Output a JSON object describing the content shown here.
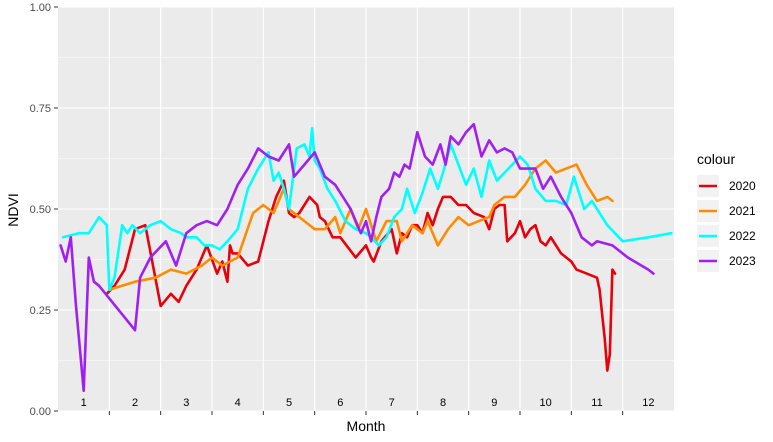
{
  "chart_data": {
    "type": "line",
    "xlabel": "Month",
    "ylabel": "NDVI",
    "legend_title": "colour",
    "legend_position": "right",
    "grid": true,
    "ylim": [
      0,
      1
    ],
    "xlim": [
      0.5,
      12.5
    ],
    "y_ticks": [
      "0.00",
      "0.25",
      "0.50",
      "0.75",
      "1.00"
    ],
    "y_tick_values": [
      0,
      0.25,
      0.5,
      0.75,
      1.0
    ],
    "x_tick_labels": [
      "1",
      "2",
      "3",
      "4",
      "5",
      "6",
      "7",
      "8",
      "9",
      "10",
      "11",
      "12"
    ],
    "series": [
      {
        "name": "2020",
        "color": "#e8000b",
        "x": [
          1.45,
          1.6,
          1.8,
          2.0,
          2.2,
          2.5,
          2.7,
          2.85,
          3.0,
          3.2,
          3.4,
          3.6,
          3.7,
          3.8,
          3.85,
          3.9,
          4.0,
          4.2,
          4.4,
          4.6,
          4.75,
          4.9,
          5.0,
          5.1,
          5.2,
          5.4,
          5.55,
          5.6,
          5.7,
          5.85,
          6.0,
          6.3,
          6.5,
          6.6,
          6.65,
          6.8,
          7.0,
          7.1,
          7.2,
          7.3,
          7.4,
          7.5,
          7.6,
          7.7,
          7.8,
          7.9,
          8.0,
          8.15,
          8.3,
          8.45,
          8.6,
          8.8,
          8.9,
          9.0,
          9.1,
          9.2,
          9.25,
          9.4,
          9.5,
          9.6,
          9.7,
          9.8,
          9.9,
          10.0,
          10.1,
          10.3,
          10.5,
          10.6,
          10.8,
          11.0,
          11.05,
          11.1,
          11.15,
          11.2,
          11.25,
          11.3,
          11.35
        ],
        "values": [
          0.29,
          0.31,
          0.35,
          0.45,
          0.46,
          0.26,
          0.29,
          0.27,
          0.31,
          0.35,
          0.41,
          0.34,
          0.37,
          0.32,
          0.41,
          0.39,
          0.39,
          0.36,
          0.37,
          0.47,
          0.53,
          0.57,
          0.49,
          0.48,
          0.49,
          0.53,
          0.51,
          0.48,
          0.47,
          0.43,
          0.43,
          0.38,
          0.41,
          0.38,
          0.37,
          0.42,
          0.45,
          0.39,
          0.44,
          0.43,
          0.46,
          0.46,
          0.44,
          0.49,
          0.46,
          0.5,
          0.53,
          0.53,
          0.51,
          0.51,
          0.49,
          0.48,
          0.45,
          0.5,
          0.51,
          0.51,
          0.42,
          0.44,
          0.47,
          0.43,
          0.45,
          0.46,
          0.42,
          0.41,
          0.43,
          0.39,
          0.37,
          0.35,
          0.34,
          0.33,
          0.3,
          0.24,
          0.18,
          0.1,
          0.14,
          0.35,
          0.34
        ]
      },
      {
        "name": "2021",
        "color": "#ff8c00",
        "x": [
          1.5,
          2.0,
          2.4,
          2.7,
          3.0,
          3.3,
          3.5,
          3.7,
          4.0,
          4.3,
          4.5,
          4.7,
          4.9,
          5.0,
          5.2,
          5.5,
          5.7,
          5.9,
          6.0,
          6.2,
          6.35,
          6.5,
          6.7,
          6.9,
          7.1,
          7.2,
          7.4,
          7.6,
          7.7,
          7.9,
          8.1,
          8.3,
          8.5,
          8.7,
          8.9,
          9.0,
          9.2,
          9.4,
          9.6,
          9.8,
          10.0,
          10.2,
          10.4,
          10.6,
          10.8,
          11.0,
          11.2,
          11.3
        ],
        "values": [
          0.3,
          0.32,
          0.33,
          0.35,
          0.34,
          0.36,
          0.38,
          0.36,
          0.38,
          0.49,
          0.51,
          0.49,
          0.55,
          0.5,
          0.48,
          0.45,
          0.45,
          0.48,
          0.44,
          0.5,
          0.45,
          0.5,
          0.42,
          0.47,
          0.47,
          0.42,
          0.46,
          0.44,
          0.47,
          0.41,
          0.45,
          0.48,
          0.46,
          0.47,
          0.48,
          0.51,
          0.53,
          0.53,
          0.56,
          0.6,
          0.62,
          0.59,
          0.6,
          0.61,
          0.56,
          0.52,
          0.53,
          0.52
        ]
      },
      {
        "name": "2022",
        "color": "#00ffff",
        "x": [
          0.6,
          0.9,
          1.1,
          1.3,
          1.45,
          1.5,
          1.6,
          1.75,
          1.85,
          1.95,
          2.1,
          2.3,
          2.5,
          2.7,
          2.9,
          3.0,
          3.2,
          3.35,
          3.5,
          3.65,
          3.8,
          4.0,
          4.2,
          4.4,
          4.6,
          4.7,
          4.8,
          4.9,
          5.0,
          5.15,
          5.3,
          5.4,
          5.45,
          5.5,
          5.6,
          5.75,
          5.9,
          6.1,
          6.3,
          6.5,
          6.6,
          6.75,
          6.9,
          7.05,
          7.2,
          7.3,
          7.45,
          7.6,
          7.75,
          7.9,
          8.0,
          8.15,
          8.3,
          8.45,
          8.6,
          8.75,
          8.9,
          9.05,
          9.2,
          9.35,
          9.5,
          9.65,
          9.8,
          10.0,
          10.2,
          10.4,
          10.55,
          10.75,
          10.9,
          11.0,
          11.2,
          11.5,
          12.0,
          12.45
        ],
        "values": [
          0.43,
          0.44,
          0.44,
          0.48,
          0.46,
          0.3,
          0.33,
          0.46,
          0.44,
          0.46,
          0.44,
          0.46,
          0.47,
          0.45,
          0.44,
          0.43,
          0.43,
          0.41,
          0.41,
          0.4,
          0.42,
          0.45,
          0.55,
          0.6,
          0.64,
          0.57,
          0.59,
          0.55,
          0.5,
          0.65,
          0.66,
          0.63,
          0.7,
          0.62,
          0.6,
          0.55,
          0.52,
          0.47,
          0.45,
          0.44,
          0.43,
          0.41,
          0.43,
          0.48,
          0.5,
          0.55,
          0.49,
          0.54,
          0.6,
          0.55,
          0.59,
          0.66,
          0.61,
          0.56,
          0.6,
          0.53,
          0.62,
          0.57,
          0.59,
          0.61,
          0.63,
          0.61,
          0.55,
          0.52,
          0.52,
          0.51,
          0.58,
          0.5,
          0.52,
          0.5,
          0.46,
          0.42,
          0.43,
          0.44
        ]
      },
      {
        "name": "2023",
        "color": "#a020f0",
        "x": [
          0.55,
          0.65,
          0.75,
          0.85,
          1.0,
          1.1,
          1.2,
          1.3,
          2.0,
          2.1,
          2.3,
          2.6,
          2.8,
          3.0,
          3.2,
          3.4,
          3.6,
          3.8,
          4.0,
          4.2,
          4.4,
          4.6,
          4.8,
          5.0,
          5.1,
          5.3,
          5.5,
          5.7,
          5.9,
          6.1,
          6.2,
          6.4,
          6.5,
          6.6,
          6.7,
          6.8,
          6.95,
          7.05,
          7.15,
          7.25,
          7.35,
          7.5,
          7.65,
          7.8,
          7.95,
          8.05,
          8.15,
          8.3,
          8.45,
          8.6,
          8.75,
          8.9,
          9.05,
          9.2,
          9.35,
          9.5,
          9.65,
          9.8,
          9.95,
          10.1,
          10.3,
          10.5,
          10.7,
          10.9,
          11.0,
          11.3,
          11.6,
          12.0,
          12.1
        ],
        "values": [
          0.41,
          0.37,
          0.43,
          0.26,
          0.05,
          0.38,
          0.32,
          0.31,
          0.2,
          0.33,
          0.38,
          0.42,
          0.36,
          0.44,
          0.46,
          0.47,
          0.46,
          0.5,
          0.56,
          0.6,
          0.65,
          0.63,
          0.62,
          0.66,
          0.58,
          0.61,
          0.64,
          0.58,
          0.56,
          0.52,
          0.5,
          0.44,
          0.47,
          0.42,
          0.48,
          0.53,
          0.55,
          0.59,
          0.58,
          0.61,
          0.6,
          0.69,
          0.63,
          0.61,
          0.66,
          0.61,
          0.68,
          0.66,
          0.69,
          0.71,
          0.63,
          0.67,
          0.64,
          0.65,
          0.64,
          0.6,
          0.6,
          0.6,
          0.55,
          0.58,
          0.53,
          0.49,
          0.43,
          0.41,
          0.42,
          0.41,
          0.38,
          0.35,
          0.34
        ]
      }
    ]
  }
}
